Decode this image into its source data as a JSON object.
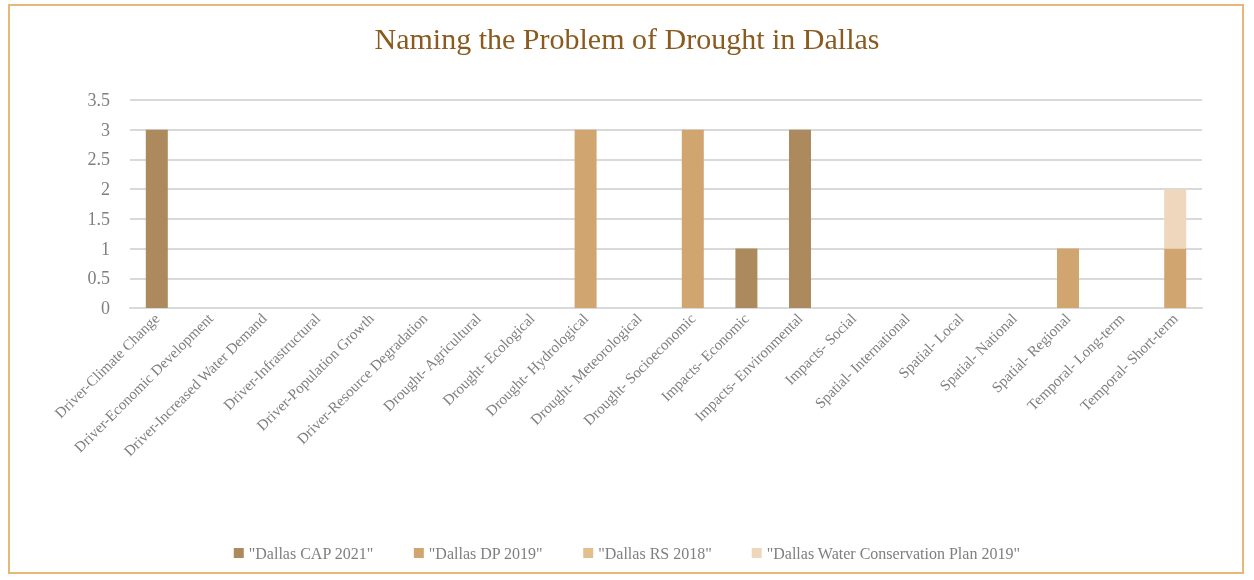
{
  "chart_data": {
    "type": "bar",
    "title": "Naming the Problem of Drought in Dallas",
    "categories": [
      "Driver-Climate Change",
      "Driver-Economic Development",
      "Driver-Increased Water Demand",
      "Driver-Infrastructural",
      "Driver-Population Growth",
      "Driver-Resource Degradation",
      "Drought- Agricultural",
      "Drought- Ecological",
      "Drought- Hydrological",
      "Drought- Meteorological",
      "Drought- Socioeconomic",
      "Impacts- Economic",
      "Impacts- Environmental",
      "Impacts- Social",
      "Spatial- International",
      "Spatial- Local",
      "Spatial- National",
      "Spatial- Regional",
      "Temporal- Long-term",
      "Temporal- Short-term"
    ],
    "series": [
      {
        "name": "\"Dallas CAP 2021\"",
        "color": "#ad8a5e",
        "values": [
          3,
          0,
          0,
          0,
          0,
          0,
          0,
          0,
          0,
          0,
          0,
          1,
          3,
          0,
          0,
          0,
          0,
          0,
          0,
          0
        ]
      },
      {
        "name": "\"Dallas DP 2019\"",
        "color": "#d1a570",
        "values": [
          0,
          0,
          0,
          0,
          0,
          0,
          0,
          0,
          3,
          0,
          3,
          0,
          0,
          0,
          0,
          0,
          0,
          1,
          0,
          1
        ]
      },
      {
        "name": "\"Dallas RS 2018\"",
        "color": "#e4bf8e",
        "values": [
          0,
          0,
          0,
          0,
          0,
          0,
          0,
          0,
          0,
          0,
          0,
          0,
          0,
          0,
          0,
          0,
          0,
          0,
          0,
          0
        ]
      },
      {
        "name": "\"Dallas Water Conservation Plan 2019\"",
        "color": "#efd7bd",
        "values": [
          0,
          0,
          0,
          0,
          0,
          0,
          0,
          0,
          0,
          0,
          0,
          0,
          0,
          0,
          0,
          0,
          0,
          0,
          0,
          1
        ]
      }
    ],
    "stacked": true,
    "ylim": [
      0,
      3.5
    ],
    "yticks": [
      0,
      0.5,
      1,
      1.5,
      2,
      2.5,
      3,
      3.5
    ],
    "grid": "y",
    "legend": "bottom"
  }
}
